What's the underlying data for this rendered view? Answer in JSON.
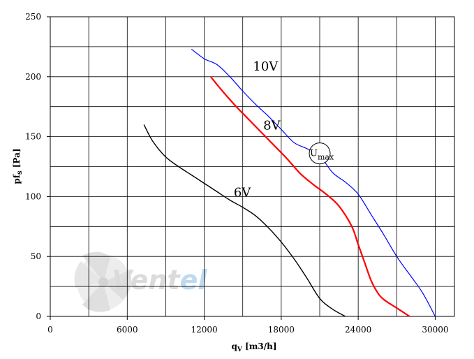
{
  "chart_data": {
    "type": "line",
    "xlabel": "qV [m3/h]",
    "ylabel": "pfs [Pa]",
    "xlim": [
      0,
      31500
    ],
    "ylim": [
      0,
      250
    ],
    "x_ticks": [
      0,
      6000,
      12000,
      18000,
      24000,
      30000
    ],
    "y_ticks": [
      0,
      50,
      100,
      150,
      200,
      250
    ],
    "x_minor_step": 3000,
    "y_minor_step": 25,
    "grid": true,
    "series": [
      {
        "name": "10V",
        "color": "#0000ff",
        "x": [
          11000,
          12000,
          13000,
          14000,
          15000,
          16000,
          17000,
          18000,
          19000,
          20000,
          21000,
          22000,
          23000,
          24000,
          25000,
          26000,
          27000,
          28000,
          29000,
          30000
        ],
        "y": [
          223,
          215,
          210,
          200,
          188,
          177,
          167,
          156,
          145,
          140,
          134,
          120,
          112,
          102,
          85,
          68,
          50,
          35,
          20,
          0
        ]
      },
      {
        "name": "8V",
        "color": "#ff0000",
        "x": [
          12500,
          13500,
          14500,
          15500,
          16500,
          17500,
          18500,
          19500,
          20500,
          21500,
          22500,
          23500,
          24000,
          24500,
          25000,
          25500,
          26000,
          27000,
          28000
        ],
        "y": [
          200,
          187,
          175,
          164,
          153,
          142,
          131,
          119,
          110,
          102,
          92,
          75,
          60,
          45,
          30,
          20,
          14,
          7,
          0
        ]
      },
      {
        "name": "6V",
        "color": "#000000",
        "x": [
          7300,
          8000,
          9000,
          10000,
          11000,
          12000,
          13000,
          14000,
          15000,
          16000,
          17000,
          18000,
          19000,
          20000,
          21000,
          22000,
          23000
        ],
        "y": [
          160,
          146,
          133,
          125,
          118,
          111,
          104,
          97,
          91,
          84,
          74,
          62,
          48,
          32,
          15,
          6,
          0
        ]
      }
    ],
    "annotations": [
      {
        "text": "10V",
        "x": 15800,
        "y": 205
      },
      {
        "text": "8V",
        "x": 16600,
        "y": 156
      },
      {
        "text": "6V",
        "x": 14300,
        "y": 100
      }
    ],
    "umax": {
      "label_main": "U",
      "label_sub": "max",
      "x": 21000,
      "y": 136
    }
  },
  "watermark": {
    "text_main": "Vent",
    "text_accent": "el",
    "main_color": "#d8d8d8",
    "accent_color": "#b8d6ef"
  }
}
